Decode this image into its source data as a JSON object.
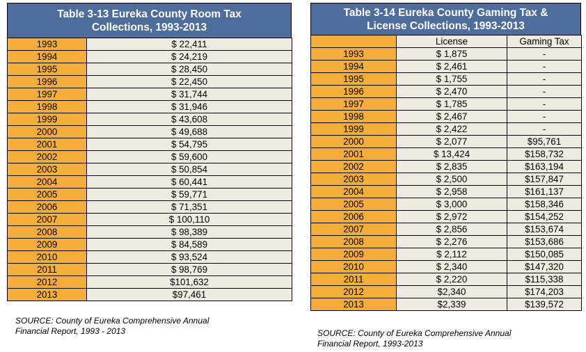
{
  "room_tax": {
    "title_line1": "Table 3-13 Eureka County Room Tax",
    "title_line2": "Collections, 1993-2013",
    "rows": [
      {
        "year": "1993",
        "value": "$ 22,411"
      },
      {
        "year": "1994",
        "value": "$ 24,219"
      },
      {
        "year": "1995",
        "value": "$ 28,450"
      },
      {
        "year": "1996",
        "value": "$ 22,450"
      },
      {
        "year": "1997",
        "value": "$ 31,744"
      },
      {
        "year": "1998",
        "value": "$ 31,946"
      },
      {
        "year": "1999",
        "value": "$ 43,608"
      },
      {
        "year": "2000",
        "value": "$ 49,688"
      },
      {
        "year": "2001",
        "value": "$ 54,795"
      },
      {
        "year": "2002",
        "value": "$ 59,600"
      },
      {
        "year": "2003",
        "value": "$ 50,854"
      },
      {
        "year": "2004",
        "value": "$ 60,441"
      },
      {
        "year": "2005",
        "value": "$ 59,771"
      },
      {
        "year": "2006",
        "value": "$ 71,351"
      },
      {
        "year": "2007",
        "value": "$ 100,110"
      },
      {
        "year": "2008",
        "value": "$ 98,389"
      },
      {
        "year": "2009",
        "value": "$ 84,589"
      },
      {
        "year": "2010",
        "value": "$ 93,524"
      },
      {
        "year": "2011",
        "value": "$ 98,769"
      },
      {
        "year": "2012",
        "value": "$101,632"
      },
      {
        "year": "2013",
        "value": "$97,461"
      }
    ],
    "source_line1": "SOURCE: County of Eureka Comprehensive Annual",
    "source_line2": "Financial Report, 1993 - 2013"
  },
  "gaming_tax": {
    "title_line1": "Table 3-14 Eureka County Gaming Tax &",
    "title_line2": "License Collections, 1993-2013",
    "col_license": "License",
    "col_gaming": "Gaming Tax",
    "rows": [
      {
        "year": "1993",
        "license": "$ 1,875",
        "gaming": "-"
      },
      {
        "year": "1994",
        "license": "$ 2,461",
        "gaming": "-"
      },
      {
        "year": "1995",
        "license": "$ 1,755",
        "gaming": "-"
      },
      {
        "year": "1996",
        "license": "$ 2,470",
        "gaming": "-"
      },
      {
        "year": "1997",
        "license": "$ 1,785",
        "gaming": "-"
      },
      {
        "year": "1998",
        "license": "$ 2,467",
        "gaming": "-"
      },
      {
        "year": "1999",
        "license": "$ 2,422",
        "gaming": "-"
      },
      {
        "year": "2000",
        "license": "$ 2,077",
        "gaming": "$95,761"
      },
      {
        "year": "2001",
        "license": "$ 13,424",
        "gaming": "$158,732"
      },
      {
        "year": "2002",
        "license": "$ 2,835",
        "gaming": "$163,194"
      },
      {
        "year": "2003",
        "license": "$ 2,500",
        "gaming": "$157,847"
      },
      {
        "year": "2004",
        "license": "$ 2,958",
        "gaming": "$161,137"
      },
      {
        "year": "2005",
        "license": "$ 3,000",
        "gaming": "$158,346"
      },
      {
        "year": "2006",
        "license": "$ 2,972",
        "gaming": "$154,252"
      },
      {
        "year": "2007",
        "license": "$ 2,856",
        "gaming": "$153,674"
      },
      {
        "year": "2008",
        "license": "$ 2,276",
        "gaming": "$153,686"
      },
      {
        "year": "2009",
        "license": "$ 2,112",
        "gaming": "$150,085"
      },
      {
        "year": "2010",
        "license": "$ 2,340",
        "gaming": "$147,320"
      },
      {
        "year": "2011",
        "license": "$ 2,220",
        "gaming": "$115,338"
      },
      {
        "year": "2012",
        "license": "$2,340",
        "gaming": "$174,203"
      },
      {
        "year": "2013",
        "license": "$2,339",
        "gaming": "$139,572"
      }
    ],
    "source_line1": "SOURCE: County of Eureka Comprehensive Annual",
    "source_line2": "Financial Report, 1993-2013"
  },
  "colors": {
    "title_bg": "#4f6d9a",
    "year_bg": "#f5ae3c",
    "value_bg": "#eeece1"
  }
}
